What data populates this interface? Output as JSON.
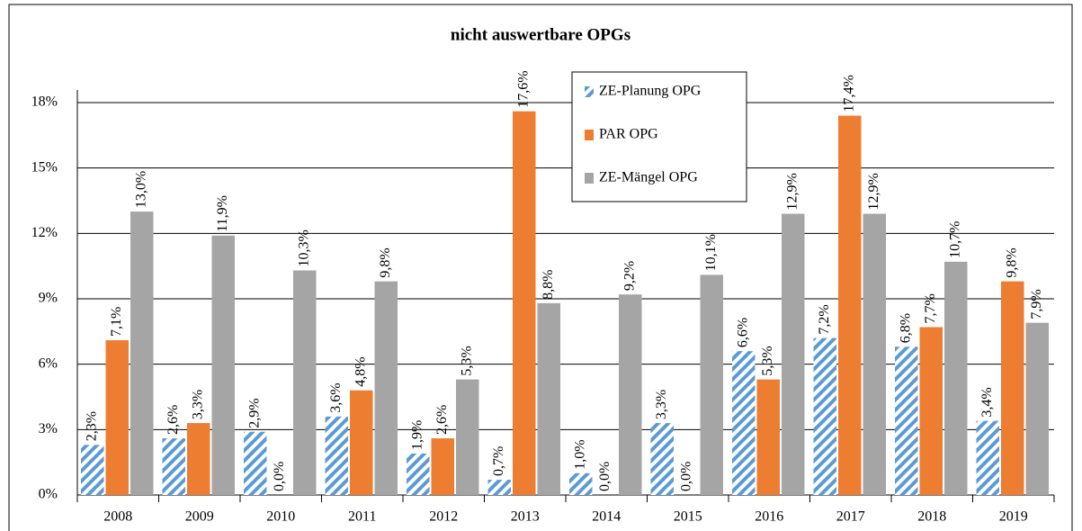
{
  "chart_data": {
    "type": "bar",
    "title": "nicht auswertbare OPGs",
    "categories": [
      "2008",
      "2009",
      "2010",
      "2011",
      "2012",
      "2013",
      "2014",
      "2015",
      "2016",
      "2017",
      "2018",
      "2019"
    ],
    "series": [
      {
        "name": "ZE-Planung OPG",
        "color": "#5b9bd5",
        "hatch": true,
        "values": [
          2.3,
          2.6,
          2.9,
          3.6,
          1.9,
          0.7,
          1.0,
          3.3,
          6.6,
          7.2,
          6.8,
          3.4
        ],
        "value_labels": [
          "2,3%",
          "2,6%",
          "2,9%",
          "3,6%",
          "1,9%",
          "0,7%",
          "1,0%",
          "3,3%",
          "6,6%",
          "7,2%",
          "6,8%",
          "3,4%"
        ]
      },
      {
        "name": "PAR OPG",
        "color": "#ed7d31",
        "values": [
          7.1,
          3.3,
          0.0,
          4.8,
          2.6,
          17.6,
          0.0,
          0.0,
          5.3,
          17.4,
          7.7,
          9.8
        ],
        "value_labels": [
          "7,1%",
          "3,3%",
          "0,0%",
          "4,8%",
          "2,6%",
          "17,6%",
          "0,0%",
          "0,0%",
          "5,3%",
          "17,4%",
          "7,7%",
          "9,8%"
        ]
      },
      {
        "name": "ZE-Mängel OPG",
        "color": "#a5a5a5",
        "values": [
          13.0,
          11.9,
          10.3,
          9.8,
          5.3,
          8.8,
          9.2,
          10.1,
          12.9,
          12.9,
          10.7,
          7.9
        ],
        "value_labels": [
          "13,0%",
          "11,9%",
          "10,3%",
          "9,8%",
          "5,3%",
          "8,8%",
          "9,2%",
          "10,1%",
          "12,9%",
          "12,9%",
          "10,7%",
          "7,9%"
        ]
      }
    ],
    "ylim": [
      0,
      18
    ],
    "yticks": [
      {
        "value": 0,
        "label": "0%"
      },
      {
        "value": 3,
        "label": "3%"
      },
      {
        "value": 6,
        "label": "6%"
      },
      {
        "value": 9,
        "label": "9%"
      },
      {
        "value": 12,
        "label": "12%"
      },
      {
        "value": 15,
        "label": "15%"
      },
      {
        "value": 18,
        "label": "18%"
      }
    ],
    "grid": true,
    "legend": "top"
  }
}
